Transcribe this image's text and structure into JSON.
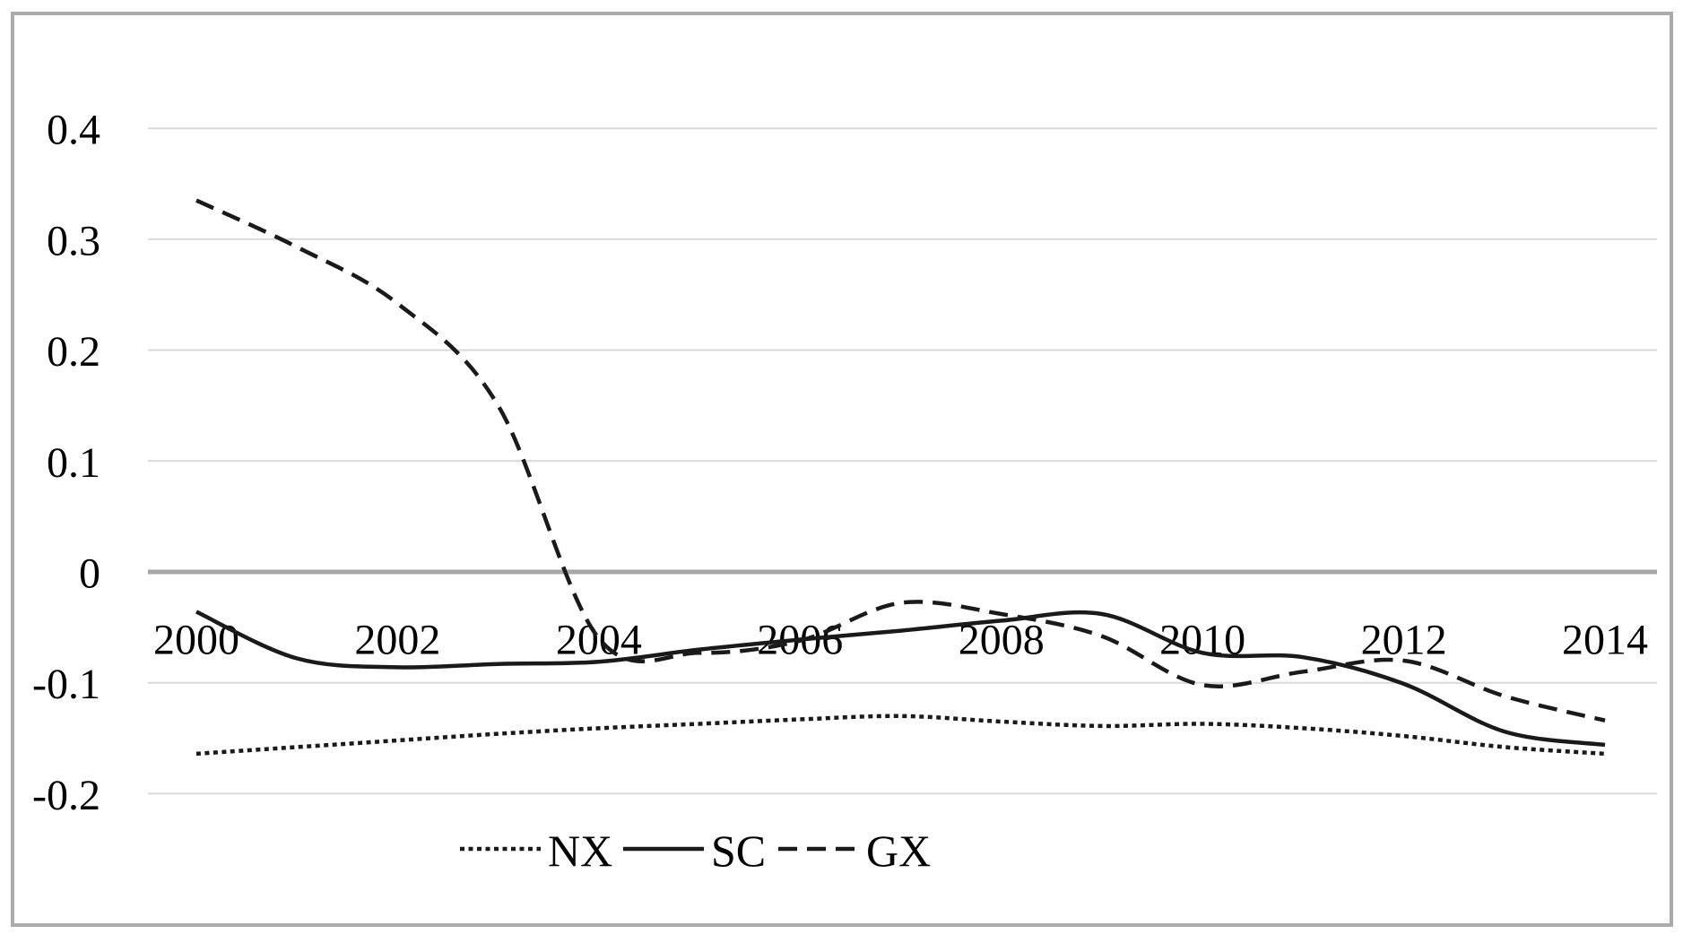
{
  "figure": {
    "title": "",
    "background_color": "#ffffff",
    "frame_border_color": "#ababab",
    "line_color": "#1a1a1a",
    "gridline_color": "#d9d9d9",
    "zero_line_color": "#a6a6a6",
    "text_color": "#000000",
    "y_axis": {
      "tick_labels": [
        "0.4",
        "0.3",
        "0.2",
        "0.1",
        "0",
        "-0.1",
        "-0.2"
      ],
      "tick_values": [
        0.4,
        0.3,
        0.2,
        0.1,
        0,
        -0.1,
        -0.2
      ]
    },
    "x_axis": {
      "tick_labels": [
        "2000",
        "2002",
        "2004",
        "2006",
        "2008",
        "2010",
        "2012",
        "2014"
      ],
      "tick_values": [
        2000,
        2002,
        2004,
        2006,
        2008,
        2010,
        2012,
        2014
      ]
    },
    "legend": {
      "position": "bottom",
      "items": [
        {
          "label": "NX",
          "style": "dotted"
        },
        {
          "label": "SC",
          "style": "solid"
        },
        {
          "label": "GX",
          "style": "dashed"
        }
      ]
    }
  },
  "chart_data": {
    "type": "line",
    "title": "",
    "xlabel": "",
    "ylabel": "",
    "x": [
      2000,
      2001,
      2002,
      2003,
      2004,
      2005,
      2006,
      2007,
      2008,
      2009,
      2010,
      2011,
      2012,
      2013,
      2014
    ],
    "series": [
      {
        "name": "NX",
        "style": "dotted",
        "values": [
          -0.164,
          -0.158,
          -0.152,
          -0.146,
          -0.141,
          -0.137,
          -0.133,
          -0.13,
          -0.135,
          -0.139,
          -0.137,
          -0.141,
          -0.148,
          -0.158,
          -0.164
        ]
      },
      {
        "name": "SC",
        "style": "solid",
        "values": [
          -0.036,
          -0.078,
          -0.086,
          -0.083,
          -0.081,
          -0.07,
          -0.061,
          -0.053,
          -0.044,
          -0.038,
          -0.073,
          -0.077,
          -0.101,
          -0.144,
          -0.156
        ]
      },
      {
        "name": "GX",
        "style": "dashed",
        "values": [
          0.335,
          0.293,
          0.242,
          0.15,
          -0.06,
          -0.073,
          -0.062,
          -0.028,
          -0.038,
          -0.058,
          -0.102,
          -0.09,
          -0.08,
          -0.112,
          -0.134
        ]
      }
    ],
    "xlim": [
      2000,
      2014
    ],
    "ylim": [
      -0.2,
      0.4
    ],
    "grid": true,
    "smooth_lines": true,
    "legend_position": "bottom"
  }
}
